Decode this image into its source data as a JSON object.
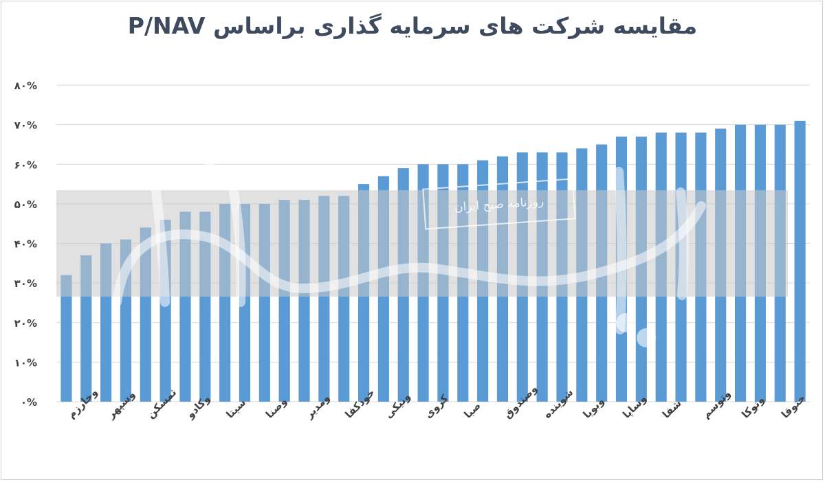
{
  "chart_data": {
    "type": "bar",
    "title": "مقایسه شرکت های سرمایه گذاری براساس P/NAV",
    "xlabel": "",
    "ylabel": "",
    "ylim": [
      0,
      80
    ],
    "y_tick_labels": [
      "۰%",
      "۱۰%",
      "۲۰%",
      "۳۰%",
      "۴۰%",
      "۵۰%",
      "۶۰%",
      "۷۰%",
      "۸۰%"
    ],
    "grid": true,
    "bar_color": "#5b9bd5",
    "values": [
      32,
      37,
      40,
      41,
      44,
      46,
      48,
      48,
      50,
      50,
      50,
      51,
      51,
      52,
      52,
      55,
      57,
      59,
      60,
      60,
      60,
      61,
      62,
      63,
      63,
      63,
      64,
      65,
      67,
      67,
      68,
      68,
      68,
      69,
      70,
      70,
      70,
      71
    ],
    "shown_category_labels": [
      "وخارزم",
      "وسپهر",
      "ثمسکن",
      "وکادو",
      "سیتا",
      "وصنا",
      "ومدیر",
      "خودکفا",
      "ونیکی",
      "کروی",
      "صبا",
      "وصندوق",
      "شوینده",
      "وبویا",
      "وساپا",
      "شفا",
      "وتوسم",
      "وتوکا",
      "ختوقا"
    ],
    "label_bar_indices": [
      0,
      2,
      4,
      6,
      8,
      10,
      12,
      14,
      16,
      18,
      20,
      22,
      24,
      26,
      28,
      30,
      32,
      34,
      36
    ]
  },
  "watermark": {
    "tagline": "روزنامه صبح ایران"
  }
}
